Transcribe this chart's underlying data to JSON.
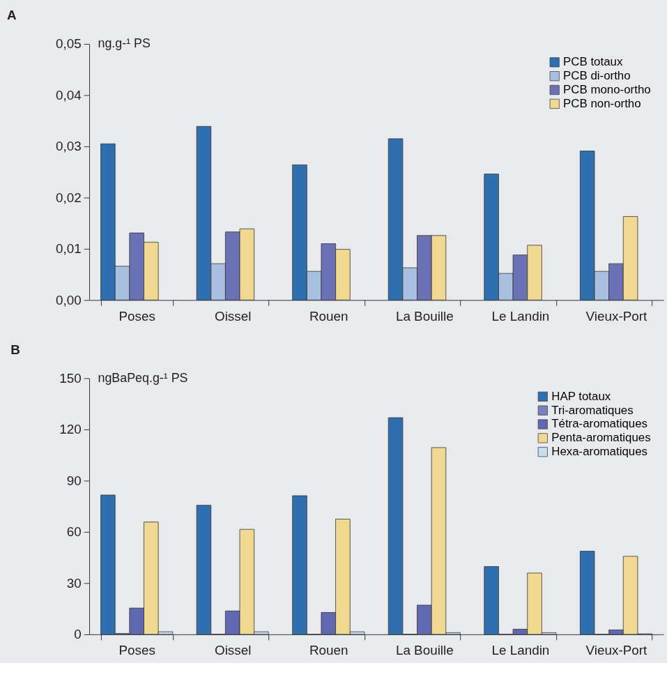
{
  "chart_data": [
    {
      "type": "bar",
      "title": "A",
      "ylabel": "ng.g-¹ PS",
      "categories": [
        "Poses",
        "Oissel",
        "Rouen",
        "La Bouille",
        "Le Landin",
        "Vieux-Port"
      ],
      "ylim": [
        0,
        0.05
      ],
      "yticks": [
        {
          "value": 0,
          "label": "0,00"
        },
        {
          "value": 0.01,
          "label": "0,01"
        },
        {
          "value": 0.02,
          "label": "0,02"
        },
        {
          "value": 0.03,
          "label": "0,03"
        },
        {
          "value": 0.04,
          "label": "0,04"
        },
        {
          "value": 0.05,
          "label": "0,05"
        }
      ],
      "legend": "top right",
      "grid": false,
      "series": [
        {
          "name": "PCB totaux",
          "color": "#2e6fb0",
          "values": [
            0.0305,
            0.0339,
            0.0264,
            0.0315,
            0.0246,
            0.0291
          ]
        },
        {
          "name": "PCB di-ortho",
          "color": "#a9bfe0",
          "values": [
            0.0066,
            0.0071,
            0.0056,
            0.0063,
            0.0052,
            0.0056
          ]
        },
        {
          "name": "PCB mono-ortho",
          "color": "#6a72b5",
          "values": [
            0.0131,
            0.0133,
            0.011,
            0.0126,
            0.0088,
            0.0071
          ]
        },
        {
          "name": "PCB non-ortho",
          "color": "#f0d890",
          "values": [
            0.0113,
            0.0139,
            0.0099,
            0.0126,
            0.0107,
            0.0163
          ]
        }
      ]
    },
    {
      "type": "bar",
      "title": "B",
      "ylabel": "ngBaPeq.g-¹ PS",
      "categories": [
        "Poses",
        "Oissel",
        "Rouen",
        "La Bouille",
        "Le Landin",
        "Vieux-Port"
      ],
      "ylim": [
        0,
        150
      ],
      "yticks": [
        0,
        30,
        60,
        90,
        120,
        150
      ],
      "legend": "top right",
      "grid": false,
      "series": [
        {
          "name": "HAP totaux",
          "color": "#2e6fb0",
          "values": [
            81.6,
            75.6,
            81.2,
            126.9,
            39.7,
            48.7
          ]
        },
        {
          "name": "Tri-aromatiques",
          "color": "#7b80c0",
          "values": [
            0.5,
            0,
            0,
            0,
            0,
            0
          ]
        },
        {
          "name": "Tétra-aromatiques",
          "color": "#5f68b0",
          "values": [
            15.4,
            13.7,
            12.8,
            17.1,
            3.0,
            2.6
          ]
        },
        {
          "name": "Penta-aromatiques",
          "color": "#f0d890",
          "values": [
            65.8,
            61.5,
            67.5,
            109.4,
            35.9,
            45.7
          ]
        },
        {
          "name": "Hexa-aromatiques",
          "color": "#c8ddf0",
          "values": [
            1.5,
            1.5,
            1.5,
            1.0,
            1.0,
            0.3
          ]
        }
      ]
    }
  ]
}
